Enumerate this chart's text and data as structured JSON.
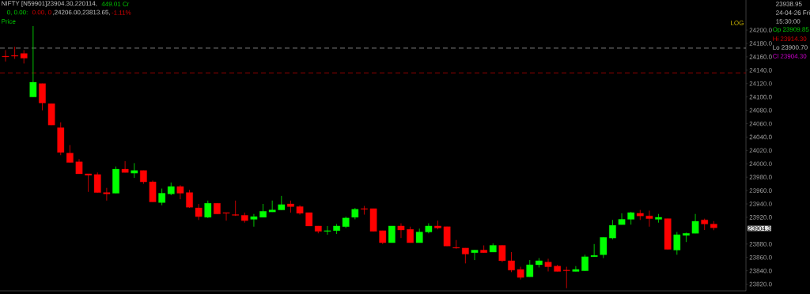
{
  "chart_data": {
    "type": "candlestick",
    "grid": false,
    "tick_labels": "y",
    "categories": [
      null,
      null,
      null,
      null,
      null,
      null,
      null,
      null,
      null,
      null,
      null,
      null,
      null,
      null,
      null,
      null,
      null,
      null,
      null,
      null,
      null,
      null,
      null,
      null,
      null,
      null,
      null,
      null,
      null,
      null,
      null,
      null,
      null,
      null,
      null,
      null,
      null,
      null,
      null,
      null,
      null,
      null,
      null,
      null,
      null,
      null,
      null,
      null,
      null,
      null,
      null,
      null,
      null,
      null,
      null,
      null,
      null,
      null,
      null,
      null,
      null,
      null,
      null,
      null,
      null,
      null,
      null,
      null,
      null,
      null,
      null,
      null,
      null,
      null,
      null,
      null,
      null,
      null
    ],
    "ohlc": [
      [
        24161,
        24170,
        24153,
        24160
      ],
      [
        24162,
        24175,
        24157,
        24161
      ],
      [
        24165,
        24170,
        24150,
        24158
      ],
      [
        24100,
        24206,
        24100,
        24122
      ],
      [
        24120,
        24120,
        24080,
        24091
      ],
      [
        24090,
        24090,
        24058,
        24058
      ],
      [
        24054,
        24062,
        24013,
        24017
      ],
      [
        24016,
        24028,
        24002,
        24002
      ],
      [
        24003,
        24007,
        23985,
        23985
      ],
      [
        23985,
        23985,
        23958,
        23983
      ],
      [
        23984,
        23987,
        23957,
        23957
      ],
      [
        23957,
        23964,
        23945,
        23955
      ],
      [
        23956,
        23996,
        23956,
        23992
      ],
      [
        23992,
        24004,
        23987,
        23987
      ],
      [
        23986,
        24001,
        23979,
        23990
      ],
      [
        23990,
        23990,
        23970,
        23973
      ],
      [
        23973,
        23975,
        23943,
        23943
      ],
      [
        23942,
        23963,
        23938,
        23956
      ],
      [
        23955,
        23972,
        23953,
        23966
      ],
      [
        23966,
        23968,
        23947,
        23956
      ],
      [
        23957,
        23961,
        23934,
        23935
      ],
      [
        23934,
        23940,
        23916,
        23921
      ],
      [
        23920,
        23945,
        23919,
        23941
      ],
      [
        23941,
        23941,
        23925,
        23925
      ],
      [
        23927,
        23927,
        23915,
        23926
      ],
      [
        23924,
        23945,
        23922,
        23923
      ],
      [
        23923,
        23927,
        23912,
        23915
      ],
      [
        23917,
        23925,
        23906,
        23921
      ],
      [
        23920,
        23940,
        23920,
        23929
      ],
      [
        23928,
        23945,
        23928,
        23931
      ],
      [
        23931,
        23952,
        23931,
        23939
      ],
      [
        23940,
        23945,
        23927,
        23936
      ],
      [
        23936,
        23938,
        23924,
        23926
      ],
      [
        23927,
        23927,
        23907,
        23907
      ],
      [
        23907,
        23907,
        23896,
        23899
      ],
      [
        23899,
        23907,
        23894,
        23900
      ],
      [
        23900,
        23910,
        23895,
        23907
      ],
      [
        23906,
        23921,
        23904,
        23919
      ],
      [
        23920,
        23934,
        23917,
        23932
      ],
      [
        23933,
        23937,
        23924,
        23932
      ],
      [
        23933,
        23933,
        23899,
        23899
      ],
      [
        23900,
        23900,
        23880,
        23882
      ],
      [
        23882,
        23907,
        23882,
        23907
      ],
      [
        23907,
        23911,
        23889,
        23901
      ],
      [
        23902,
        23906,
        23882,
        23882
      ],
      [
        23882,
        23903,
        23882,
        23898
      ],
      [
        23898,
        23911,
        23896,
        23907
      ],
      [
        23907,
        23915,
        23902,
        23904
      ],
      [
        23906,
        23906,
        23877,
        23877
      ],
      [
        23875,
        23886,
        23873,
        23874
      ],
      [
        23874,
        23874,
        23851,
        23865
      ],
      [
        23867,
        23871,
        23856,
        23871
      ],
      [
        23871,
        23878,
        23867,
        23867
      ],
      [
        23868,
        23881,
        23868,
        23878
      ],
      [
        23878,
        23878,
        23853,
        23855
      ],
      [
        23855,
        23868,
        23838,
        23841
      ],
      [
        23842,
        23846,
        23827,
        23830
      ],
      [
        23831,
        23856,
        23831,
        23849
      ],
      [
        23849,
        23859,
        23845,
        23855
      ],
      [
        23853,
        23858,
        23839,
        23846
      ],
      [
        23847,
        23849,
        23839,
        23839
      ],
      [
        23841,
        23846,
        23814,
        23840
      ],
      [
        23839,
        23847,
        23839,
        23842
      ],
      [
        23840,
        23864,
        23840,
        23861
      ],
      [
        23861,
        23880,
        23861,
        23863
      ],
      [
        23864,
        23890,
        23859,
        23890
      ],
      [
        23889,
        23916,
        23887,
        23908
      ],
      [
        23909,
        23926,
        23909,
        23917
      ],
      [
        23917,
        23928,
        23909,
        23927
      ],
      [
        23926,
        23931,
        23916,
        23922
      ],
      [
        23922,
        23930,
        23906,
        23918
      ],
      [
        23917,
        23925,
        23912,
        23920
      ],
      [
        23918,
        23918,
        23872,
        23872
      ],
      [
        23871,
        23898,
        23864,
        23894
      ],
      [
        23893,
        23897,
        23883,
        23896
      ],
      [
        23896,
        23925,
        23896,
        23914
      ],
      [
        23916,
        23918,
        23901,
        23910
      ],
      [
        23909.85,
        23914.3,
        23900.7,
        23904.3
      ]
    ],
    "ylim": [
      23810,
      24245
    ],
    "yticks": [
      {
        "value": 23820,
        "label": "23820.0"
      },
      {
        "value": 23840,
        "label": "23840.0"
      },
      {
        "value": 23860,
        "label": "23860.0"
      },
      {
        "value": 23880,
        "label": "23880.0"
      },
      {
        "value": 23920,
        "label": "23920.0"
      },
      {
        "value": 23940,
        "label": "23940.0"
      },
      {
        "value": 23960,
        "label": "23960.0"
      },
      {
        "value": 23980,
        "label": "23980.0"
      },
      {
        "value": 24000,
        "label": "24000.0"
      },
      {
        "value": 24020,
        "label": "24020.0"
      },
      {
        "value": 24040,
        "label": "24040.0"
      },
      {
        "value": 24060,
        "label": "24060.0"
      },
      {
        "value": 24080,
        "label": "24080.0"
      },
      {
        "value": 24100,
        "label": "24100.0"
      },
      {
        "value": 24120,
        "label": "24120.0"
      },
      {
        "value": 24140,
        "label": "24140.0"
      },
      {
        "value": 24160,
        "label": "24160.0"
      },
      {
        "value": 24180,
        "label": "24180.0"
      },
      {
        "value": 24200,
        "label": "24200.0"
      }
    ],
    "ref_lines": [
      {
        "axis": "y",
        "value": 24173,
        "color": "#a0a0a0",
        "line_style": "dashed"
      },
      {
        "axis": "y",
        "value": 24136,
        "color": "#b00000",
        "line_style": "dashed"
      }
    ],
    "annotations": [
      "NIFTY [N59901]23904.30,220114,",
      "449.01 Cr",
      "0, 0.00:",
      "0.00, 0",
      ",24206.00,23813.65,",
      "-1.11%",
      "Price",
      "LOG",
      "23938.95",
      "24-04-26 Fri",
      "15:30:00",
      "Op 23909.85",
      "Hi 23914.30",
      "Lo 23900.70",
      "Cl 23904.30",
      "23904.3"
    ]
  }
}
